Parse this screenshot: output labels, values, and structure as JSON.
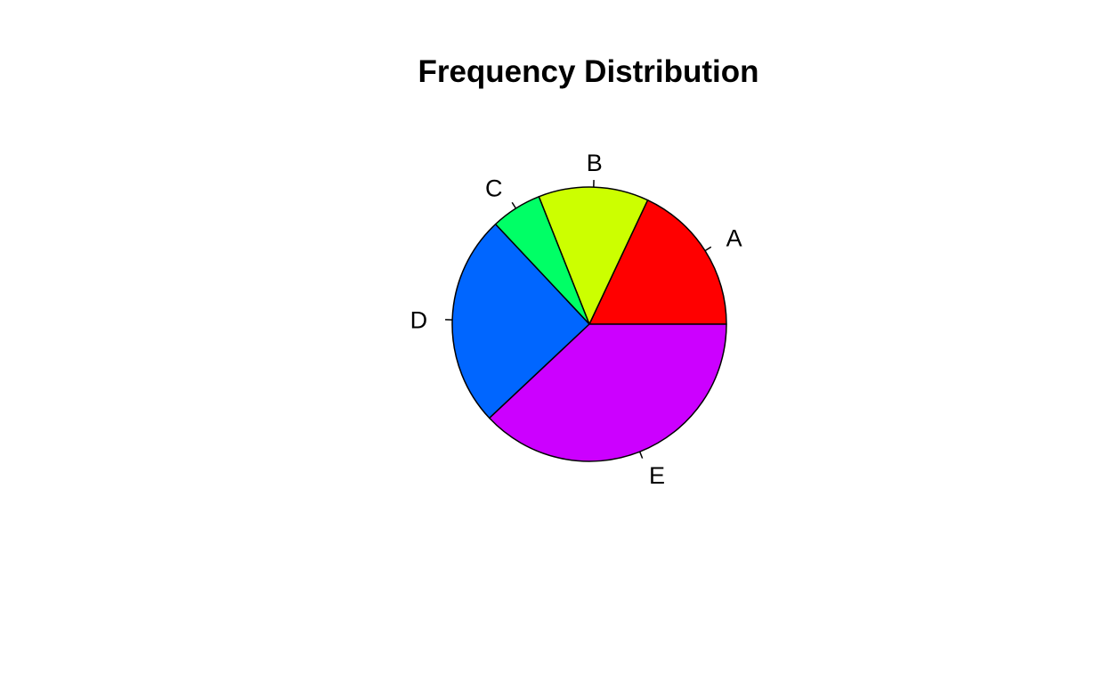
{
  "chart_data": {
    "type": "pie",
    "title": "Frequency Distribution",
    "categories": [
      "A",
      "B",
      "C",
      "D",
      "E"
    ],
    "values": [
      18,
      13,
      6,
      25,
      38
    ],
    "colors": [
      "#FF0000",
      "#CCFF00",
      "#00FF66",
      "#0066FF",
      "#CC00FF"
    ],
    "start_angle_deg": 0,
    "direction": "counterclockwise",
    "legend": "none"
  }
}
